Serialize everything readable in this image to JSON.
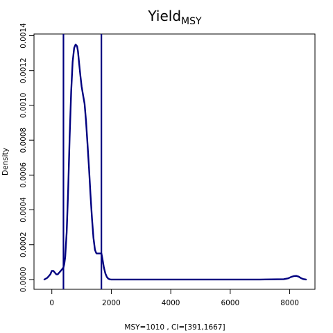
{
  "chart_data": {
    "type": "line",
    "title": "Yield",
    "title_subscript": "MSY",
    "xlabel": "MSY=1010 , CI=[391,1667]",
    "ylabel": "Density",
    "xlim": [
      -600,
      8850
    ],
    "ylim": [
      -5.6e-05,
      0.00141
    ],
    "x_ticks": [
      0,
      2000,
      4000,
      6000,
      8000
    ],
    "y_ticks": [
      0.0,
      0.0002,
      0.0004,
      0.0006,
      0.0008,
      0.001,
      0.0012,
      0.0014
    ],
    "y_tick_labels": [
      "0.0000",
      "0.0002",
      "0.0004",
      "0.0006",
      "0.0008",
      "0.0010",
      "0.0012",
      "0.0014"
    ],
    "grid": false,
    "line_color": "#000080",
    "series": [
      {
        "x": [
          -250,
          -150,
          -50,
          0,
          50,
          100,
          150,
          200,
          250,
          300,
          350,
          391,
          420,
          450,
          500,
          550,
          600,
          650,
          700,
          750,
          800,
          850,
          880,
          920,
          960,
          1000,
          1050,
          1100,
          1150,
          1200,
          1250,
          1300,
          1350,
          1400,
          1450,
          1500,
          1550,
          1600,
          1640,
          1667,
          1700,
          1750,
          1800,
          1850,
          1900,
          1950,
          2000,
          2200,
          3000,
          4000,
          5000,
          6000,
          7000,
          7800,
          7950,
          8050,
          8150,
          8220,
          8300,
          8380,
          8450,
          8550
        ],
        "y": [
          0.0,
          1e-05,
          3e-05,
          5e-05,
          5e-05,
          4e-05,
          3e-05,
          3e-05,
          4e-05,
          5e-05,
          6e-05,
          7e-05,
          9e-05,
          0.00013,
          0.00027,
          0.00052,
          0.00082,
          0.00108,
          0.00125,
          0.00133,
          0.00135,
          0.00134,
          0.00131,
          0.00124,
          0.00117,
          0.00111,
          0.00106,
          0.00101,
          0.00091,
          0.00078,
          0.00064,
          0.00049,
          0.00035,
          0.00024,
          0.00017,
          0.00015,
          0.00015,
          0.00015,
          0.00015,
          0.00015,
          0.00012,
          7e-05,
          3.5e-05,
          1.5e-05,
          5e-06,
          1e-06,
          0.0,
          0.0,
          0.0,
          0.0,
          0.0,
          0.0,
          0.0,
          2e-06,
          7e-06,
          1.5e-05,
          2e-05,
          2.1e-05,
          1.7e-05,
          8e-06,
          3e-06,
          0.0
        ]
      }
    ],
    "vlines": [
      391,
      1667
    ]
  }
}
